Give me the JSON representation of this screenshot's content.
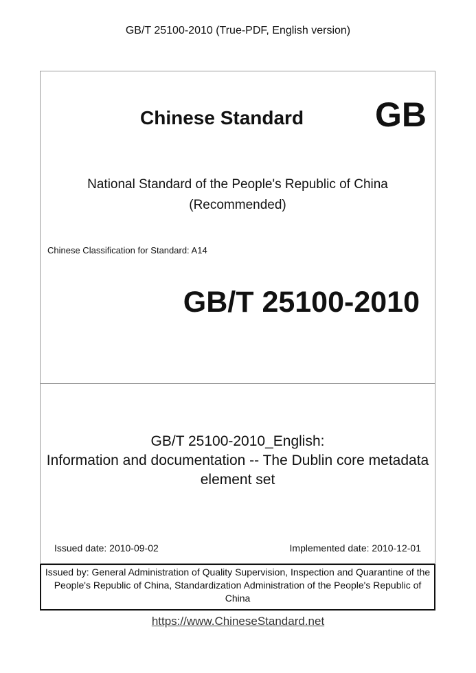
{
  "header": "GB/T 25100-2010 (True-PDF, English version)",
  "cover": {
    "brand": "Chinese Standard",
    "logo": "GB",
    "national_line1": "National Standard of the People's Republic of China",
    "national_line2": "(Recommended)",
    "classification": "Chinese Classification for Standard: A14",
    "code": "GB/T 25100-2010",
    "title_line1": "GB/T 25100-2010_English:",
    "title_line2": "Information and documentation -- The Dublin core metadata",
    "title_line3": "element set",
    "issued": "Issued date: 2010-09-02",
    "implemented": "Implemented date: 2010-12-01"
  },
  "issued_by": "Issued by: General Administration of Quality Supervision, Inspection and Quarantine of the People's Republic of China, Standardization Administration of the People's Republic of China",
  "footer_url": "https://www.ChineseStandard.net"
}
